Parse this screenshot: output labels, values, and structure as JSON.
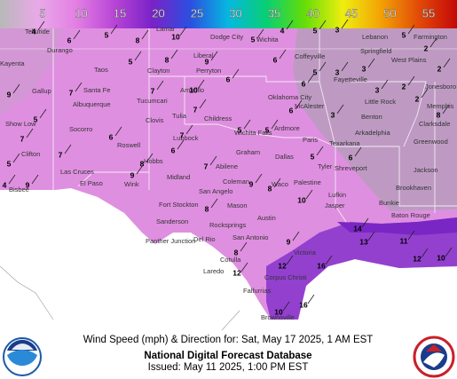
{
  "legend": {
    "ticks": [
      5,
      10,
      15,
      20,
      25,
      30,
      35,
      40,
      45,
      50,
      55
    ],
    "colors": [
      "#b8b8b8",
      "#e9a9e9",
      "#e37fe3",
      "#b845d6",
      "#7a22c8",
      "#2b4fe0",
      "#06b8e0",
      "#08cf74",
      "#66dd06",
      "#eeee10",
      "#f2a204",
      "#e24a08",
      "#c40808"
    ]
  },
  "title": "Wind Speed (mph) & Direction for: Sat, May 17 2025, 1 AM EST",
  "subtitle": "National Digital Forecast Database",
  "issued": "Issued: May 11 2025, 1:00 PM EST",
  "cities": [
    "Telluride",
    "Durango",
    "Kayenta",
    "Gallup",
    "Taos",
    "Santa Fe",
    "Albuquerque",
    "Show Low",
    "Socorro",
    "Clifton",
    "Roswell",
    "Las Cruces",
    "El Paso",
    "Bisbee",
    "Lamar",
    "Dodge City",
    "Wichita",
    "Liberal",
    "Clayton",
    "Perryton",
    "Amarillo",
    "Tucumcari",
    "Clovis",
    "Tulia",
    "Lubbock",
    "Childress",
    "Hobbs",
    "Midland",
    "Abilene",
    "Wink",
    "San Angelo",
    "Fort Stockton",
    "Sanderson",
    "Panther Junction",
    "Del Rio",
    "Rocksprings",
    "San Antonio",
    "Austin",
    "Mason",
    "Coleman",
    "Graham",
    "Wichita Falls",
    "Oklahoma City",
    "Ardmore",
    "McAlester",
    "Coffeyville",
    "Dallas",
    "Waco",
    "Palestine",
    "Tyler",
    "Lufkin",
    "Shreveport",
    "Texarkana",
    "Paris",
    "Arkadelphia",
    "Benton",
    "Little Rock",
    "Fayetteville",
    "Springfield",
    "Lebanon",
    "West Plains",
    "Farmington",
    "Jonesboro",
    "Memphis",
    "Clarksdale",
    "Greenwood",
    "Jackson",
    "Brookhaven",
    "Bunkie",
    "Baton Rouge",
    "Jasper",
    "Cotulla",
    "Laredo",
    "Victoria",
    "Corpus Christi",
    "Falfurrias",
    "Brownsville"
  ],
  "winds": [
    4,
    6,
    5,
    8,
    10,
    5,
    4,
    5,
    3,
    3,
    3,
    5,
    2,
    2,
    9,
    7,
    5,
    8,
    9,
    6,
    10,
    7,
    6,
    6,
    5,
    3,
    2,
    2,
    8,
    5,
    7,
    6,
    8,
    7,
    7,
    5,
    5,
    6,
    3,
    5,
    6,
    8,
    9,
    6,
    7,
    8,
    9,
    10,
    14,
    13,
    16,
    12,
    16,
    12,
    10,
    11,
    12,
    10,
    4,
    9,
    5,
    7,
    8,
    9
  ]
}
